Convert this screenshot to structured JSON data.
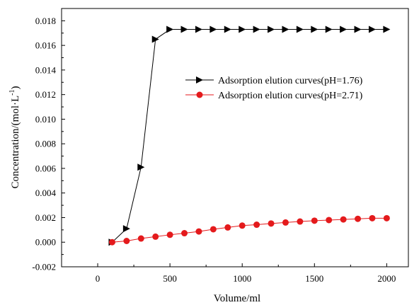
{
  "chart_data": {
    "type": "line",
    "title": "",
    "xlabel": "Volume/ml",
    "ylabel": "Concentration/(mol·L",
    "ylabel_sup": "-1",
    "ylabel_tail": ")",
    "xlim": [
      -250,
      2150
    ],
    "ylim": [
      -0.002,
      0.019
    ],
    "xticks": [
      0,
      500,
      1000,
      1500,
      2000
    ],
    "xtick_labels": [
      "0",
      "500",
      "1000",
      "1500",
      "2000"
    ],
    "yticks": [
      -0.002,
      0.0,
      0.002,
      0.004,
      0.006,
      0.008,
      0.01,
      0.012,
      0.014,
      0.016,
      0.018
    ],
    "ytick_labels": [
      "-0.002",
      "0.000",
      "0.002",
      "0.004",
      "0.006",
      "0.008",
      "0.010",
      "0.012",
      "0.014",
      "0.016",
      "0.018"
    ],
    "grid": false,
    "legend_position": "upper-right",
    "series": [
      {
        "name": "Adsorption elution curves(pH=1.76)",
        "color": "#000000",
        "marker": "triangle-right",
        "x": [
          100,
          200,
          300,
          400,
          500,
          600,
          700,
          800,
          900,
          1000,
          1100,
          1200,
          1300,
          1400,
          1500,
          1600,
          1700,
          1800,
          1900,
          2000
        ],
        "y": [
          0.0,
          0.0011,
          0.0061,
          0.0165,
          0.0173,
          0.0173,
          0.0173,
          0.0173,
          0.0173,
          0.0173,
          0.0173,
          0.0173,
          0.0173,
          0.0173,
          0.0173,
          0.0173,
          0.0173,
          0.0173,
          0.0173,
          0.0173
        ]
      },
      {
        "name": "Adsorption elution curves(pH=2.71)",
        "color": "#e41a1c",
        "marker": "circle",
        "x": [
          100,
          200,
          300,
          400,
          500,
          600,
          700,
          800,
          900,
          1000,
          1100,
          1200,
          1300,
          1400,
          1500,
          1600,
          1700,
          1800,
          1900,
          2000
        ],
        "y": [
          0.0,
          0.0001,
          0.0003,
          0.00045,
          0.0006,
          0.00073,
          0.00087,
          0.00105,
          0.0012,
          0.00135,
          0.00142,
          0.00152,
          0.0016,
          0.00168,
          0.00175,
          0.0018,
          0.00185,
          0.0019,
          0.00195,
          0.00195
        ]
      }
    ]
  }
}
